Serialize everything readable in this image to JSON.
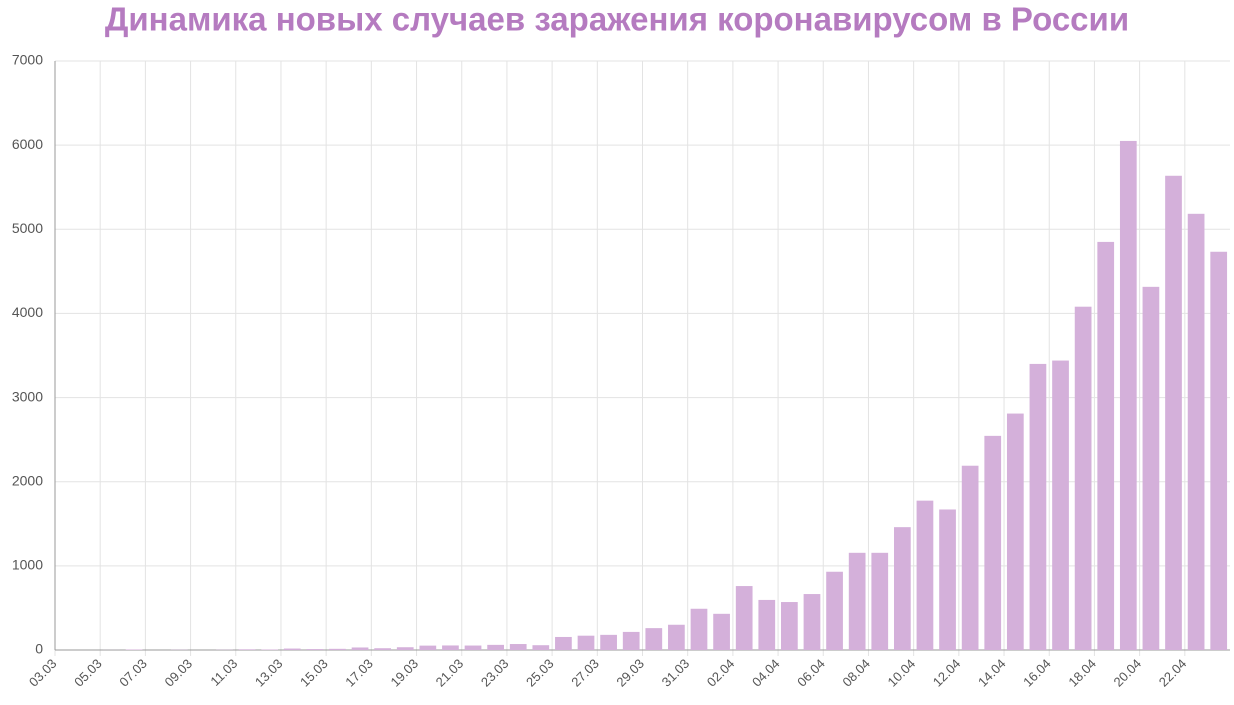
{
  "chart_data": {
    "type": "bar",
    "title": "Динамика новых случаев заражения коронавирусом в России",
    "categories": [
      "03.03",
      null,
      "05.03",
      null,
      "07.03",
      null,
      "09.03",
      null,
      "11.03",
      null,
      "13.03",
      null,
      "15.03",
      null,
      "17.03",
      null,
      "19.03",
      null,
      "21.03",
      null,
      "23.03",
      null,
      "25.03",
      null,
      "27.03",
      null,
      "29.03",
      null,
      "31.03",
      null,
      "02.04",
      null,
      "04.04",
      null,
      "06.04",
      null,
      "08.04",
      null,
      "10.04",
      null,
      "12.04",
      null,
      "14.04",
      null,
      "16.04",
      null,
      "18.04",
      null,
      "20.04",
      null,
      "22.04",
      null
    ],
    "values": [
      0,
      0,
      1,
      6,
      0,
      3,
      0,
      3,
      8,
      6,
      17,
      11,
      14,
      30,
      21,
      33,
      52,
      54,
      53,
      61,
      71,
      57,
      155,
      170,
      180,
      215,
      260,
      300,
      490,
      430,
      760,
      595,
      570,
      665,
      930,
      1155,
      1155,
      1460,
      1775,
      1670,
      2190,
      2545,
      2810,
      3400,
      3440,
      4080,
      4850,
      6050,
      4316,
      5636,
      5184,
      4733
    ],
    "color": "#d4b0da",
    "ylim": [
      0,
      7000
    ],
    "yticks": [
      0,
      1000,
      2000,
      3000,
      4000,
      5000,
      6000,
      7000
    ],
    "grid": true
  }
}
